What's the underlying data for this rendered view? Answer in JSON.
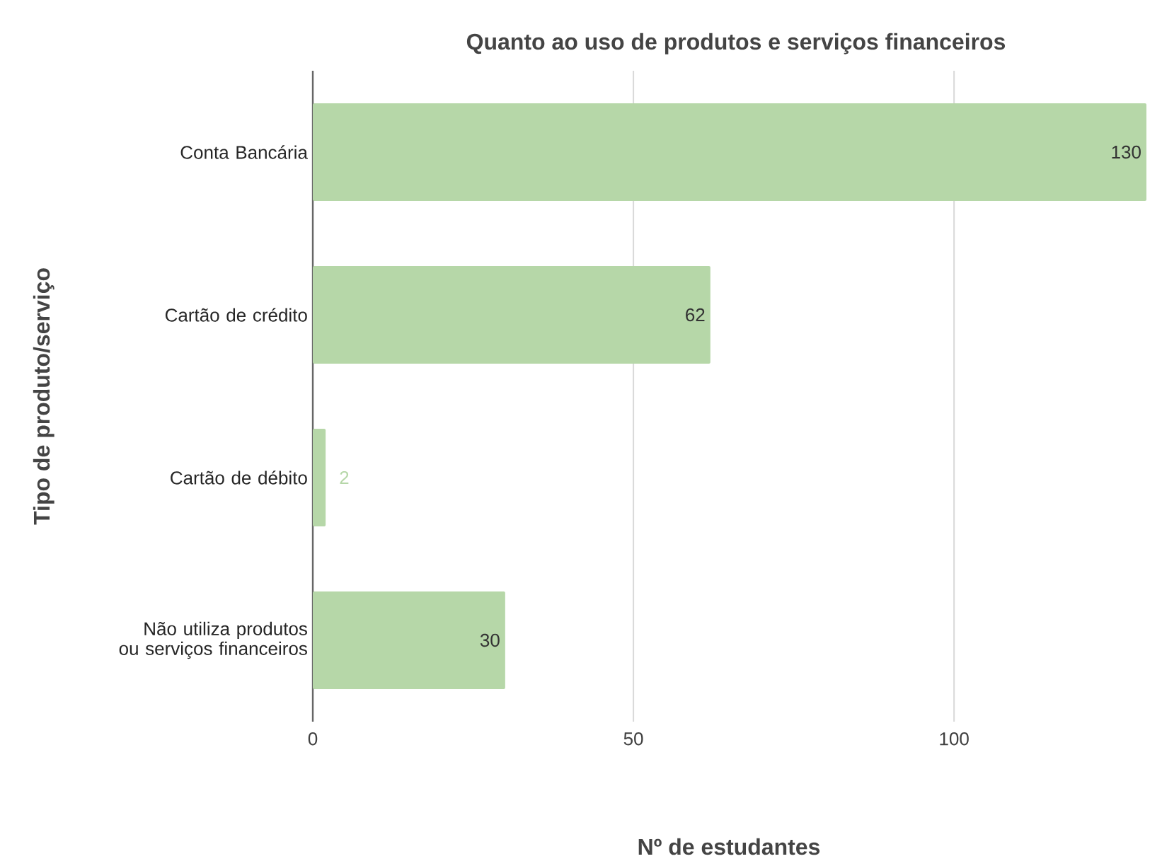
{
  "chart_data": {
    "type": "bar",
    "orientation": "horizontal",
    "title": "Quanto ao uso de produtos e serviços financeiros",
    "xlabel": "Nº de estudantes",
    "ylabel": "Tipo de produto/serviço",
    "categories": [
      "Conta Bancária",
      "Cartão de crédito",
      "Cartão de débito",
      "Não utiliza produtos ou serviços financeiros"
    ],
    "values": [
      130,
      62,
      2,
      30
    ],
    "color": "#b6d7a8",
    "xlim": [
      0,
      130
    ],
    "xticks": [
      0,
      50,
      100
    ],
    "grid": "x",
    "data_labels": true
  }
}
